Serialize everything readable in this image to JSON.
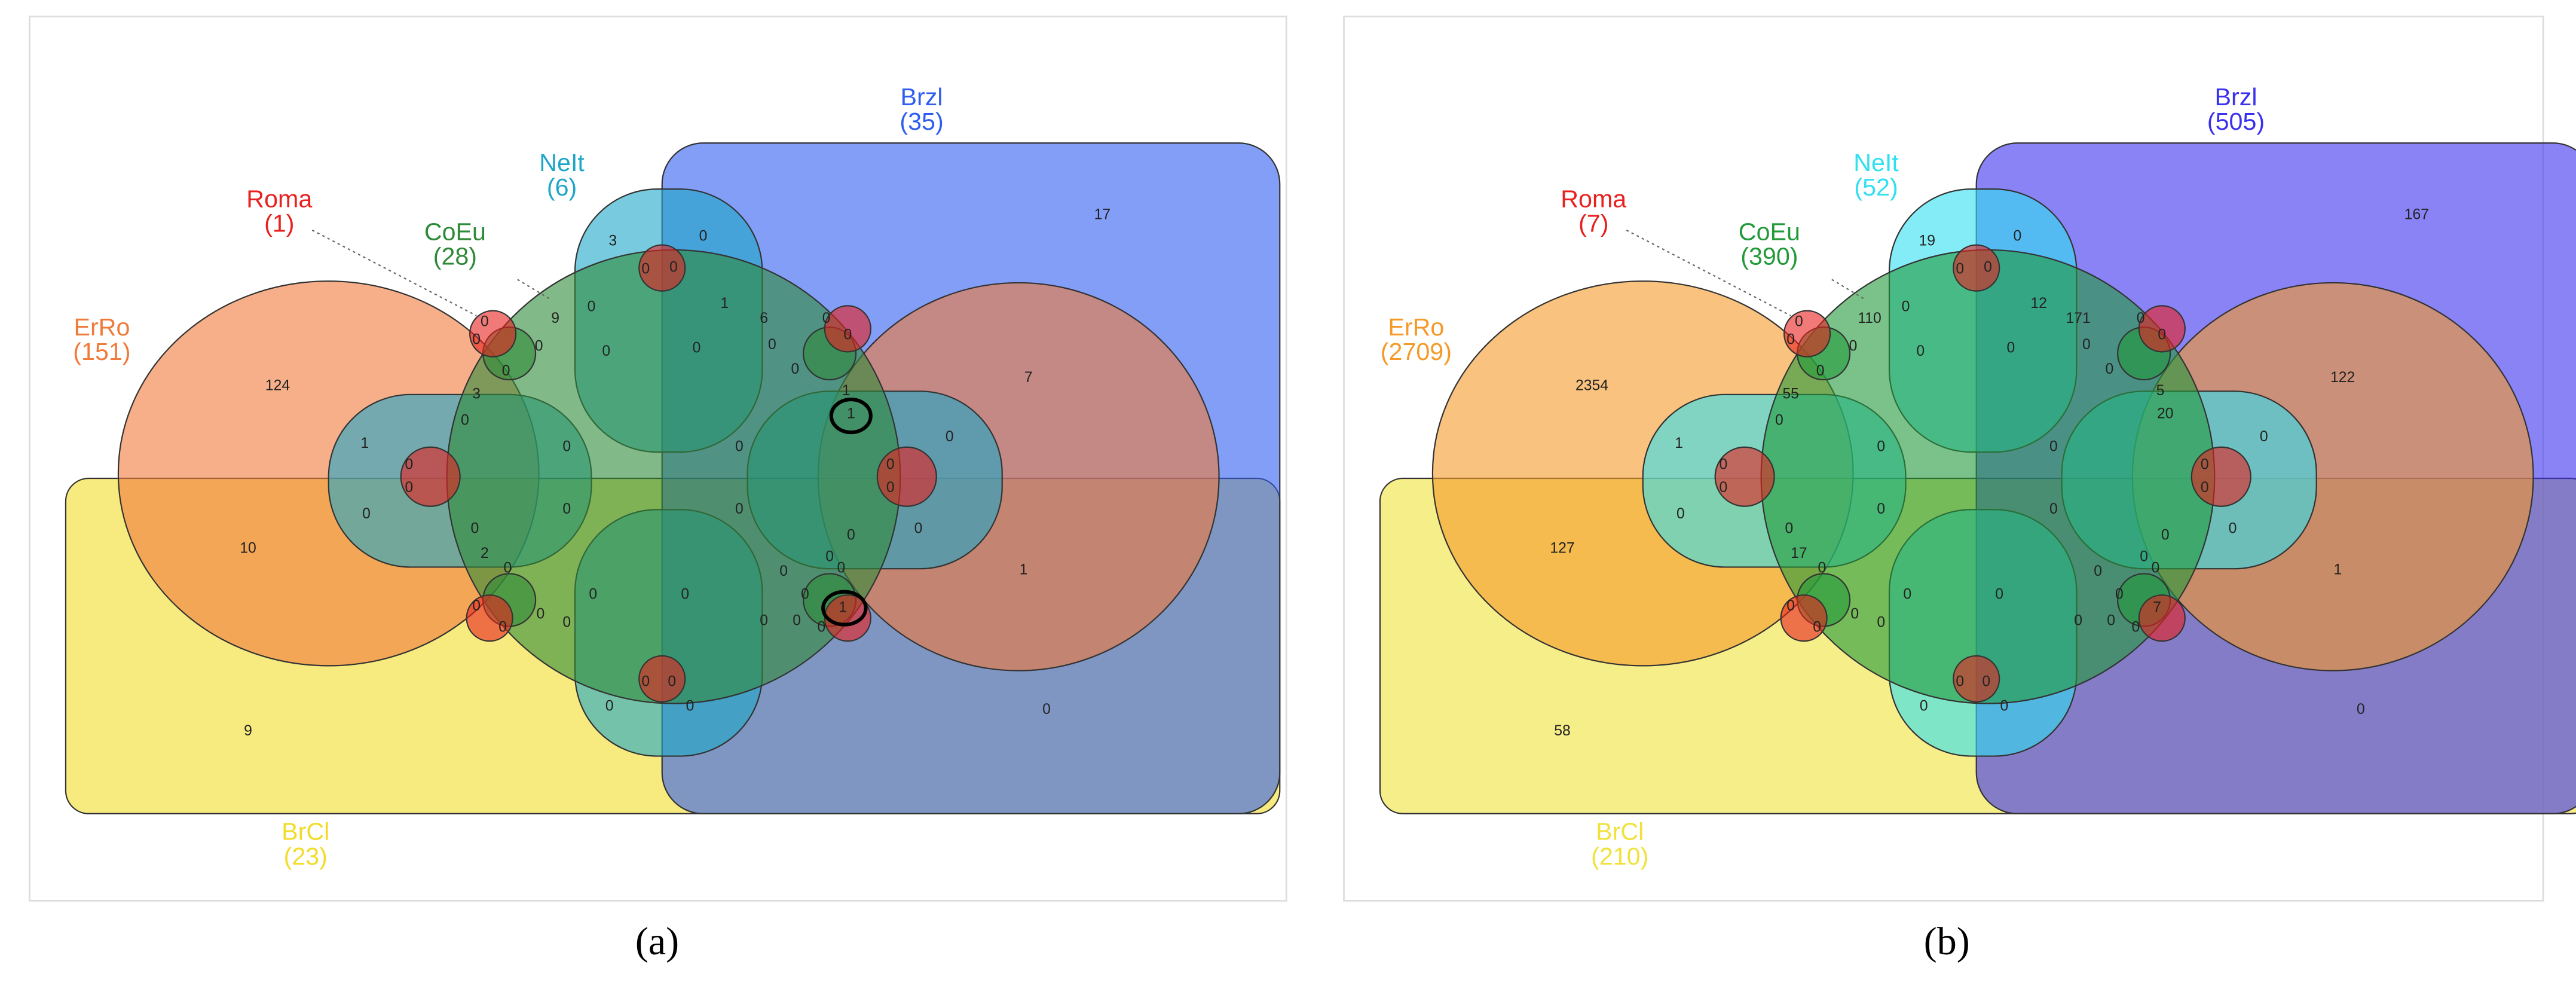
{
  "panels": [
    {
      "label": "(a)",
      "sets": [
        {
          "name": "BrCl",
          "count": "(23)",
          "color": "#f2dc2a"
        },
        {
          "name": "Brzl",
          "count": "(35)",
          "color": "#2f5df0"
        },
        {
          "name": "ErRo",
          "count": "(151)",
          "color": "#f07a3a"
        },
        {
          "name": "NeIt",
          "count": "(6)",
          "color": "#1ea6c8"
        },
        {
          "name": "CoEu",
          "count": "(28)",
          "color": "#2e8a38"
        },
        {
          "name": "Roma",
          "count": "(1)",
          "color": "#e8201e"
        }
      ],
      "regions": [
        17,
        7,
        1,
        0,
        124,
        10,
        9,
        3,
        0,
        0,
        0,
        0,
        9,
        0,
        1,
        6,
        0,
        0,
        0,
        0,
        0,
        0,
        0,
        0,
        0,
        3,
        0,
        1,
        1,
        0,
        1,
        0,
        0,
        0,
        0,
        0,
        0,
        0,
        0,
        0,
        0,
        0,
        0,
        2,
        0,
        0,
        0,
        0,
        0,
        0,
        0,
        0,
        0,
        0,
        0,
        0,
        0,
        0,
        1,
        0,
        0,
        0,
        0
      ]
    },
    {
      "label": "(b)",
      "sets": [
        {
          "name": "BrCl",
          "count": "(210)",
          "color": "#f0e23a"
        },
        {
          "name": "Brzl",
          "count": "(505)",
          "color": "#3a30f0"
        },
        {
          "name": "ErRo",
          "count": "(2709)",
          "color": "#f59a28"
        },
        {
          "name": "NeIt",
          "count": "(52)",
          "color": "#30e0f0"
        },
        {
          "name": "CoEu",
          "count": "(390)",
          "color": "#229a3a"
        },
        {
          "name": "Roma",
          "count": "(7)",
          "color": "#e8201e"
        }
      ],
      "regions": [
        167,
        122,
        1,
        0,
        2354,
        127,
        58,
        19,
        0,
        0,
        0,
        0,
        110,
        0,
        12,
        171,
        0,
        0,
        0,
        0,
        0,
        0,
        0,
        0,
        0,
        55,
        0,
        5,
        20,
        0,
        1,
        0,
        0,
        0,
        0,
        0,
        0,
        0,
        0,
        0,
        0,
        0,
        0,
        17,
        0,
        0,
        0,
        0,
        0,
        0,
        0,
        0,
        0,
        0,
        0,
        0,
        0,
        0,
        7,
        0,
        0,
        0,
        0
      ]
    }
  ]
}
